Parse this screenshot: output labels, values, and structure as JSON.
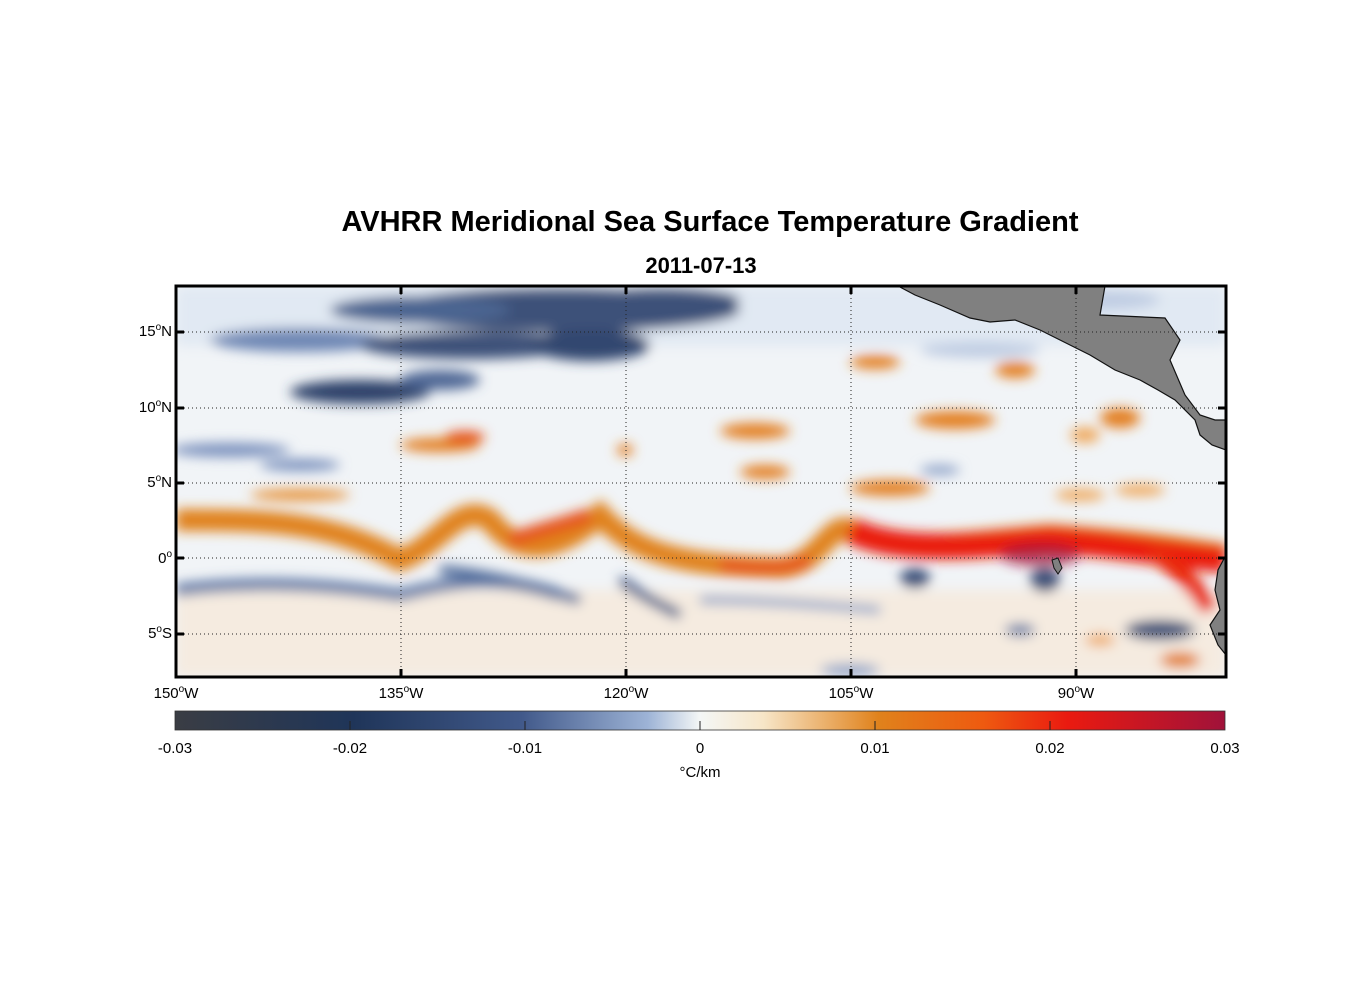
{
  "title": "AVHRR Meridional Sea Surface Temperature Gradient",
  "date": "2011-07-13",
  "map": {
    "lon_range": [
      -150,
      -80
    ],
    "lat_range": [
      -8,
      18
    ],
    "grid": "dotted",
    "land_color": "#808080",
    "lat_ticks": [
      {
        "value": 15,
        "label": "15",
        "suffix": "N"
      },
      {
        "value": 10,
        "label": "10",
        "suffix": "N"
      },
      {
        "value": 5,
        "label": "5",
        "suffix": "N"
      },
      {
        "value": 0,
        "label": "0",
        "suffix": ""
      },
      {
        "value": -5,
        "label": "5",
        "suffix": "S"
      }
    ],
    "lon_ticks": [
      {
        "value": -150,
        "label": "150",
        "suffix": "W"
      },
      {
        "value": -135,
        "label": "135",
        "suffix": "W"
      },
      {
        "value": -120,
        "label": "120",
        "suffix": "W"
      },
      {
        "value": -105,
        "label": "105",
        "suffix": "W"
      },
      {
        "value": -90,
        "label": "90",
        "suffix": "W"
      }
    ]
  },
  "colorbar": {
    "min": -0.03,
    "max": 0.03,
    "units": "°C/km",
    "ticks": [
      "-0.03",
      "-0.02",
      "-0.01",
      "0",
      "0.01",
      "0.02",
      "0.03"
    ],
    "colors": [
      "#3a3d44",
      "#1f3559",
      "#41598a",
      "#9db3d6",
      "#f4f7f6",
      "#f7e6c8",
      "#e0821c",
      "#ee5a10",
      "#ea1a10",
      "#a0123a"
    ]
  }
}
